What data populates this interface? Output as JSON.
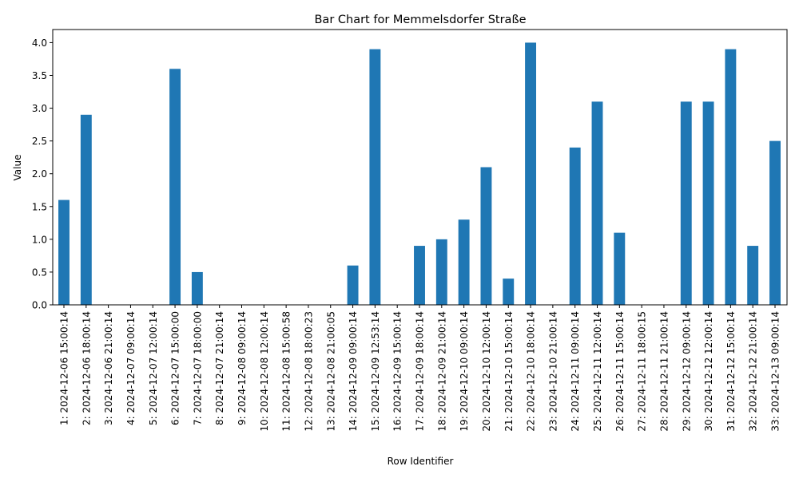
{
  "chart_data": {
    "type": "bar",
    "title": "Bar Chart for Memmelsdorfer Straße",
    "xlabel": "Row Identifier",
    "ylabel": "Value",
    "ylim": [
      0,
      4.2
    ],
    "y_ticks": [
      "0.0",
      "0.5",
      "1.0",
      "1.5",
      "2.0",
      "2.5",
      "3.0",
      "3.5",
      "4.0"
    ],
    "bar_color": "#1f77b4",
    "grid": false,
    "legend": "none",
    "categories": [
      "1: 2024-12-06 15:00:14",
      "2: 2024-12-06 18:00:14",
      "3: 2024-12-06 21:00:14",
      "4: 2024-12-07 09:00:14",
      "5: 2024-12-07 12:00:14",
      "6: 2024-12-07 15:00:00",
      "7: 2024-12-07 18:00:00",
      "8: 2024-12-07 21:00:14",
      "9: 2024-12-08 09:00:14",
      "10: 2024-12-08 12:00:14",
      "11: 2024-12-08 15:00:58",
      "12: 2024-12-08 18:00:23",
      "13: 2024-12-08 21:00:05",
      "14: 2024-12-09 09:00:14",
      "15: 2024-12-09 12:53:14",
      "16: 2024-12-09 15:00:14",
      "17: 2024-12-09 18:00:14",
      "18: 2024-12-09 21:00:14",
      "19: 2024-12-10 09:00:14",
      "20: 2024-12-10 12:00:14",
      "21: 2024-12-10 15:00:14",
      "22: 2024-12-10 18:00:14",
      "23: 2024-12-10 21:00:14",
      "24: 2024-12-11 09:00:14",
      "25: 2024-12-11 12:00:14",
      "26: 2024-12-11 15:00:14",
      "27: 2024-12-11 18:00:15",
      "28: 2024-12-11 21:00:14",
      "29: 2024-12-12 09:00:14",
      "30: 2024-12-12 12:00:14",
      "31: 2024-12-12 15:00:14",
      "32: 2024-12-12 21:00:14",
      "33: 2024-12-13 09:00:14"
    ],
    "values": [
      1.6,
      2.9,
      0,
      0,
      0,
      3.6,
      0.5,
      0,
      0,
      0,
      0,
      0,
      0,
      0.6,
      3.9,
      0,
      0.9,
      1.0,
      1.3,
      2.1,
      0.4,
      4.0,
      0,
      2.4,
      3.1,
      1.1,
      0,
      0,
      3.1,
      3.1,
      3.9,
      0.9,
      2.5
    ]
  }
}
